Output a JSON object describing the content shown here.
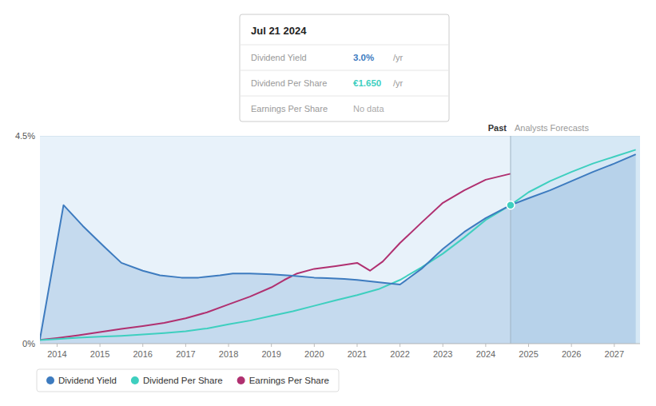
{
  "chart_data": {
    "type": "line",
    "xlim": [
      2013.6,
      2027.6
    ],
    "xticks": [
      2014,
      2015,
      2016,
      2017,
      2018,
      2019,
      2020,
      2021,
      2022,
      2023,
      2024,
      2025,
      2026,
      2027
    ],
    "ylim": [
      0,
      4.5
    ],
    "yticks": [
      {
        "value": 0,
        "label": "0%"
      },
      {
        "value": 4.5,
        "label": "4.5%"
      }
    ],
    "grid": true,
    "legend": "bottom",
    "series": [
      {
        "name": "Dividend Yield",
        "type": "area",
        "color": "#3d7bbf",
        "x": [
          2013.6,
          2014.15,
          2014.6,
          2015.1,
          2015.5,
          2016.0,
          2016.4,
          2016.9,
          2017.3,
          2017.8,
          2018.1,
          2018.5,
          2019.0,
          2019.5,
          2020.0,
          2020.3,
          2020.7,
          2021.0,
          2021.3,
          2021.6,
          2022.0,
          2022.5,
          2023.0,
          2023.5,
          2024.0,
          2024.58,
          2025.0,
          2025.5,
          2026.0,
          2026.5,
          2027.0,
          2027.5
        ],
        "values": [
          0.1,
          3.0,
          2.55,
          2.1,
          1.75,
          1.58,
          1.48,
          1.43,
          1.43,
          1.48,
          1.52,
          1.52,
          1.5,
          1.47,
          1.43,
          1.42,
          1.4,
          1.38,
          1.35,
          1.32,
          1.28,
          1.62,
          2.05,
          2.42,
          2.72,
          3.0,
          3.15,
          3.32,
          3.52,
          3.72,
          3.9,
          4.1
        ]
      },
      {
        "name": "Dividend Per Share",
        "color": "#3ecfbf",
        "x": [
          2013.6,
          2014.0,
          2014.5,
          2015.0,
          2015.5,
          2016.0,
          2016.5,
          2017.0,
          2017.5,
          2018.0,
          2018.5,
          2019.0,
          2019.5,
          2020.0,
          2020.5,
          2021.0,
          2021.5,
          2022.0,
          2022.5,
          2023.0,
          2023.5,
          2024.0,
          2024.58,
          2025.0,
          2025.5,
          2026.0,
          2026.5,
          2027.0,
          2027.5
        ],
        "values": [
          0.08,
          0.1,
          0.13,
          0.15,
          0.17,
          0.2,
          0.23,
          0.27,
          0.33,
          0.42,
          0.5,
          0.6,
          0.7,
          0.82,
          0.94,
          1.05,
          1.18,
          1.38,
          1.65,
          1.95,
          2.3,
          2.68,
          3.0,
          3.28,
          3.52,
          3.72,
          3.9,
          4.05,
          4.2
        ]
      },
      {
        "name": "Earnings Per Share",
        "color": "#b03070",
        "x": [
          2013.6,
          2014.0,
          2014.5,
          2015.0,
          2015.5,
          2016.0,
          2016.5,
          2017.0,
          2017.5,
          2018.0,
          2018.5,
          2019.0,
          2019.3,
          2019.6,
          2020.0,
          2020.5,
          2021.0,
          2021.3,
          2021.6,
          2022.0,
          2022.5,
          2023.0,
          2023.5,
          2024.0,
          2024.58
        ],
        "values": [
          0.08,
          0.12,
          0.18,
          0.25,
          0.32,
          0.38,
          0.45,
          0.55,
          0.68,
          0.85,
          1.02,
          1.22,
          1.38,
          1.52,
          1.62,
          1.68,
          1.75,
          1.58,
          1.78,
          2.18,
          2.62,
          3.05,
          3.32,
          3.55,
          3.68
        ]
      }
    ],
    "annotations": [
      {
        "text": "Past",
        "x": 2024.58
      },
      {
        "text": "Analysts Forecasts",
        "x": 2024.58
      },
      {
        "text": "Jul 21 2024",
        "rows": [
          [
            "Dividend Yield",
            "3.0%",
            "/yr"
          ],
          [
            "Dividend Per Share",
            "€1.650",
            "/yr"
          ],
          [
            "Earnings Per Share",
            "No data"
          ]
        ]
      }
    ]
  }
}
